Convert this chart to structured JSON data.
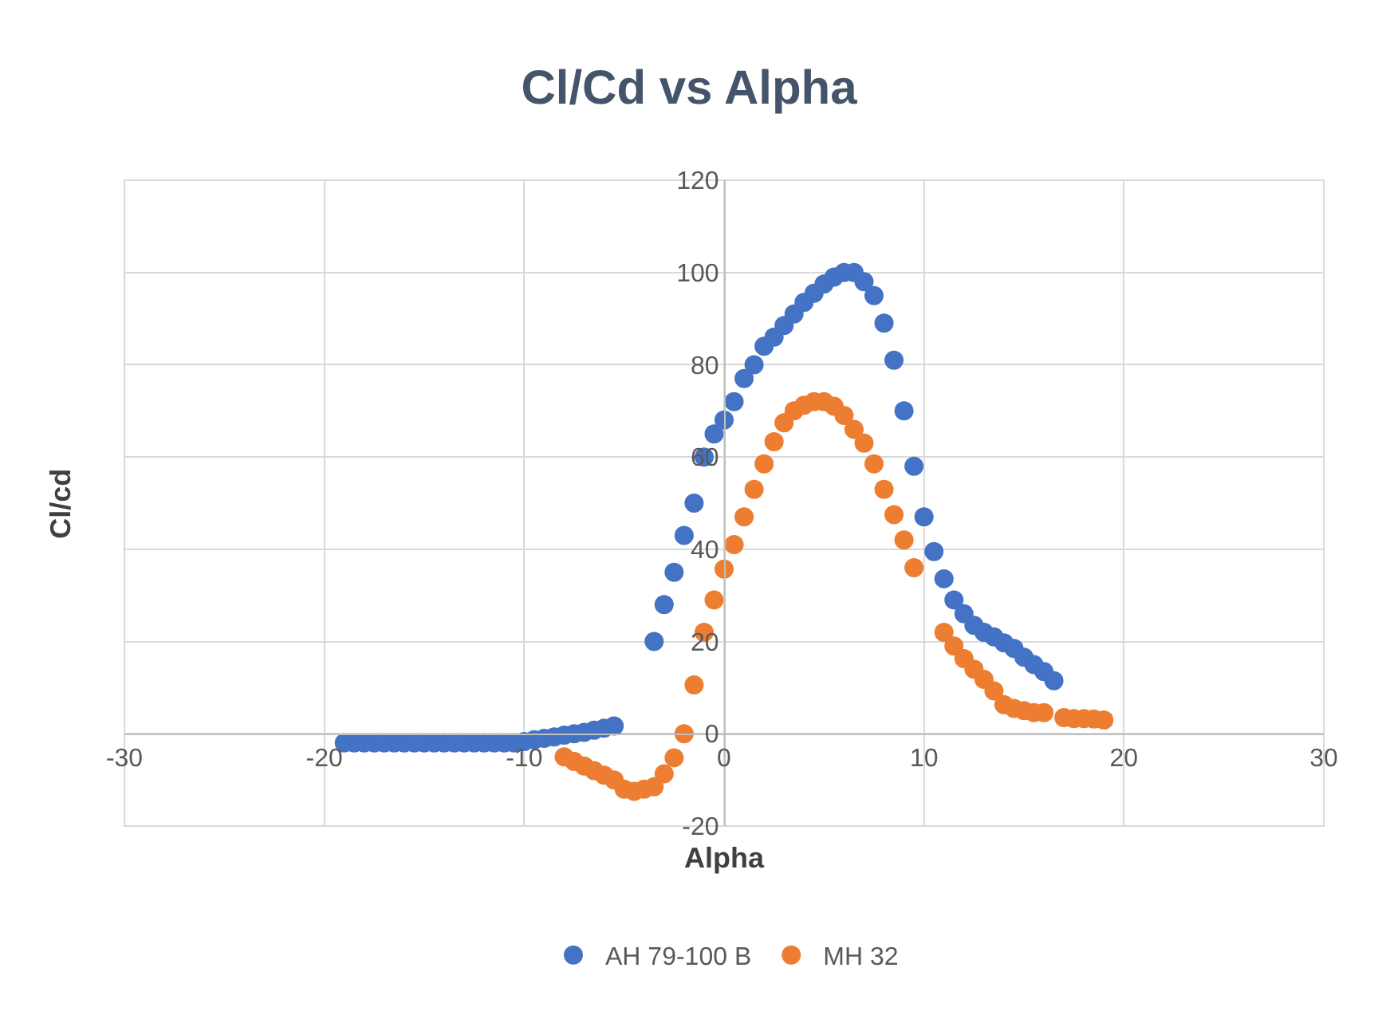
{
  "chart_data": {
    "type": "scatter",
    "title": "Cl/Cd vs Alpha",
    "xlabel": "Alpha",
    "ylabel": "Cl/cd",
    "xlim": [
      -30,
      30
    ],
    "xticks": [
      -30,
      -20,
      -10,
      0,
      10,
      20,
      30
    ],
    "ylim": [
      -20,
      120
    ],
    "yticks": [
      -20,
      0,
      20,
      40,
      60,
      80,
      100,
      120
    ],
    "grid": true,
    "legend": "bottom",
    "marker": "circle",
    "series": [
      {
        "name": "AH 79-100 B",
        "color": "#4472c4",
        "x": [
          -19,
          -18.5,
          -18,
          -17.5,
          -17,
          -16.5,
          -16,
          -15.5,
          -15,
          -14.5,
          -14,
          -13.5,
          -13,
          -12.5,
          -12,
          -11.5,
          -11,
          -10.5,
          -10,
          -9.5,
          -9,
          -8.5,
          -8,
          -7.5,
          -7,
          -6.5,
          -6,
          -5.5,
          -3.5,
          -3,
          -2.5,
          -2,
          -1.5,
          -1,
          -0.5,
          0,
          0.5,
          1,
          1.5,
          2,
          2.5,
          3,
          3.5,
          4,
          4.5,
          5,
          5.5,
          6,
          6.5,
          7,
          7.5,
          8,
          8.5,
          9,
          9.5,
          10,
          10.5,
          11,
          11.5,
          12,
          12.5,
          13,
          13.5,
          14,
          14.5,
          15,
          15.5,
          16,
          16.5
        ],
        "values": [
          -2,
          -2,
          -2,
          -2,
          -2,
          -2,
          -2,
          -2,
          -2,
          -2,
          -2,
          -2,
          -2,
          -2,
          -2,
          -2,
          -2,
          -2,
          -1.7,
          -1.3,
          -1,
          -0.7,
          -0.3,
          0,
          0.3,
          0.8,
          1.2,
          1.7,
          20,
          28,
          35,
          43,
          50,
          60,
          65,
          68,
          72,
          77,
          80,
          84,
          86,
          88.5,
          91,
          93.5,
          95.5,
          97.5,
          99,
          100,
          100,
          98,
          95,
          89,
          81,
          70,
          58,
          47,
          39.5,
          33.6,
          29,
          26,
          23.5,
          22,
          21,
          19.7,
          18.5,
          16.6,
          15,
          13.5,
          11.5
        ]
      },
      {
        "name": "MH 32",
        "color": "#ed7d31",
        "x": [
          -8,
          -7.5,
          -7,
          -6.5,
          -6,
          -5.5,
          -5,
          -4.5,
          -4,
          -3.5,
          -3,
          -2.5,
          -2,
          -1.5,
          -1,
          -0.5,
          0,
          0.5,
          1,
          1.5,
          2,
          2.5,
          3,
          3.5,
          4,
          4.5,
          5,
          5.5,
          6,
          6.5,
          7,
          7.5,
          8,
          8.5,
          9,
          9.5,
          11,
          11.5,
          12,
          12.5,
          13,
          13.5,
          14,
          14.5,
          15,
          15.5,
          16,
          17,
          17.5,
          18,
          18.5,
          19
        ],
        "values": [
          -5,
          -6,
          -7,
          -8,
          -9,
          -10,
          -12,
          -12.5,
          -12,
          -11.5,
          -8.7,
          -5.2,
          0,
          10.6,
          22,
          29,
          35.7,
          41,
          47,
          53,
          58.5,
          63.3,
          67.4,
          70,
          71.2,
          72,
          72,
          71,
          69,
          66,
          63,
          58.5,
          53,
          47.5,
          42,
          36,
          22,
          19,
          16.3,
          14,
          11.8,
          9.3,
          6.3,
          5.5,
          5,
          4.6,
          4.6,
          3.5,
          3.3,
          3.3,
          3.2,
          3
        ]
      }
    ]
  }
}
